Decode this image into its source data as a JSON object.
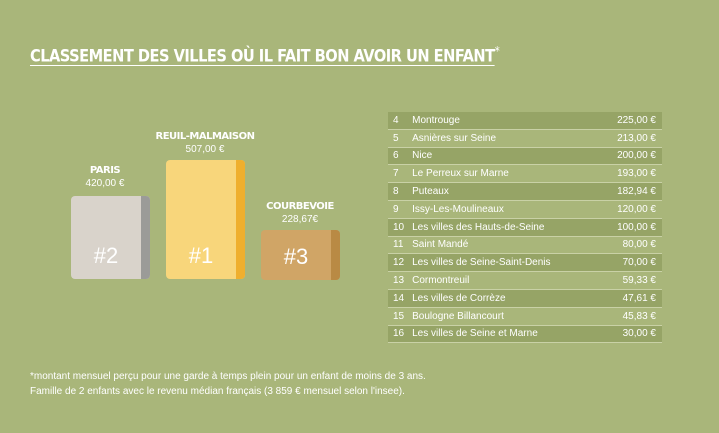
{
  "header": {
    "title": "CLASSEMENT DES VILLES OÙ IL FAIT BON AVOIR UN ENFANT",
    "mark": "*"
  },
  "podium": [
    {
      "city": "PARIS",
      "price": "420,00 €",
      "rank": "#2"
    },
    {
      "city": "REUIL-MALMAISON",
      "price": "507,00 €",
      "rank": "#1"
    },
    {
      "city": "COURBEVOIE",
      "price": "228,67€",
      "rank": "#3"
    }
  ],
  "table": {
    "rows": [
      [
        4,
        "Montrouge",
        "225,00 €"
      ],
      [
        5,
        "Asnières sur Seine",
        "213,00 €"
      ],
      [
        6,
        "Nice",
        "200,00 €"
      ],
      [
        7,
        "Le Perreux sur Marne",
        "193,00 €"
      ],
      [
        8,
        "Puteaux",
        "182,94 €"
      ],
      [
        9,
        "Issy-Les-Moulineaux",
        "120,00 €"
      ],
      [
        10,
        "Les villes des Hauts-de-Seine",
        "100,00 €"
      ],
      [
        11,
        "Saint Mandé",
        "80,00 €"
      ],
      [
        12,
        "Les villes de Seine-Saint-Denis",
        "70,00 €"
      ],
      [
        13,
        "Cormontreuil",
        "59,33 €"
      ],
      [
        14,
        "Les villes de Corrèze",
        "47,61 €"
      ],
      [
        15,
        "Boulogne Billancourt",
        "45,83 €"
      ],
      [
        16,
        "Les villes de Seine et Marne",
        "30,00 €"
      ]
    ]
  },
  "footnotes": [
    "*montant mensuel perçu pour une garde à temps plein pour un enfant de moins de 3 ans.",
    "Famille de 2 enfants avec le revenu médian français (3 859 € mensuel selon l'insee)."
  ]
}
